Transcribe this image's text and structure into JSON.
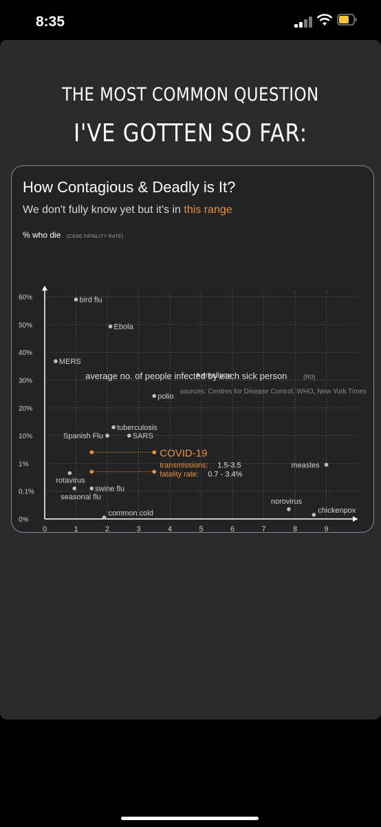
{
  "status_bar": {
    "time": "8:35"
  },
  "headline": {
    "line1": "THE MOST COMMON QUESTION",
    "line2": "I'VE GOTTEN SO FAR:"
  },
  "colors": {
    "background": "#2b2b2e",
    "accent": "#e8913a",
    "point": "#bfbfbf",
    "text": "#cfcfcf"
  },
  "chart_data": {
    "type": "scatter",
    "title": "How Contagious & Deadly is It?",
    "subtitle_prefix": "We don't fully know yet but it's in ",
    "subtitle_highlight": "this range",
    "ylabel": "% who die",
    "ylabel_note": "(CASE FATALITY RATE)",
    "xlabel": "average no. of people infected by each sick person",
    "xlabel_note": "(R0)",
    "source": "sources: Centres for Disease Control, WHO, New York Times",
    "x_ticks": [
      "0",
      "1",
      "2",
      "3",
      "4",
      "5",
      "6",
      "7",
      "8",
      "9"
    ],
    "y_ticks": [
      "0%",
      "0.1%",
      "1%",
      "10%",
      "20%",
      "30%",
      "40%",
      "50%",
      "60%"
    ],
    "xlim": [
      0,
      10
    ],
    "grid": true,
    "points": [
      {
        "name": "bird flu",
        "x": 1.0,
        "y": 7.9
      },
      {
        "name": "Ebola",
        "x": 2.1,
        "y": 6.93
      },
      {
        "name": "MERS",
        "x": 0.35,
        "y": 5.68
      },
      {
        "name": "smallpox",
        "x": 4.9,
        "y": 5.18
      },
      {
        "name": "polio",
        "x": 3.5,
        "y": 4.43
      },
      {
        "name": "tuberculosis",
        "x": 2.2,
        "y": 3.3
      },
      {
        "name": "Spanish Flu",
        "x": 2.0,
        "y": 3.0
      },
      {
        "name": "SARS",
        "x": 2.7,
        "y": 3.0
      },
      {
        "name": "measles",
        "x": 9.0,
        "y": 1.95
      },
      {
        "name": "rotavirus",
        "x": 0.8,
        "y": 1.65
      },
      {
        "name": "swine flu",
        "x": 1.5,
        "y": 1.1
      },
      {
        "name": "seasonal flu",
        "x": 0.95,
        "y": 1.1
      },
      {
        "name": "norovirus",
        "x": 7.8,
        "y": 0.35
      },
      {
        "name": "common cold",
        "x": 1.9,
        "y": 0.05
      },
      {
        "name": "chickenpox",
        "x": 8.6,
        "y": 0.15
      }
    ],
    "covid": {
      "name": "COVID-19",
      "transmissions_label": "transmissions:",
      "transmissions_value": "1.5-3.5",
      "fatality_label": "fatality rate:",
      "fatality_value": "0.7 - 3.4%",
      "corners": [
        {
          "x": 1.5,
          "y": 2.4
        },
        {
          "x": 3.5,
          "y": 2.4
        },
        {
          "x": 1.5,
          "y": 1.7
        },
        {
          "x": 3.5,
          "y": 1.7
        }
      ]
    }
  }
}
